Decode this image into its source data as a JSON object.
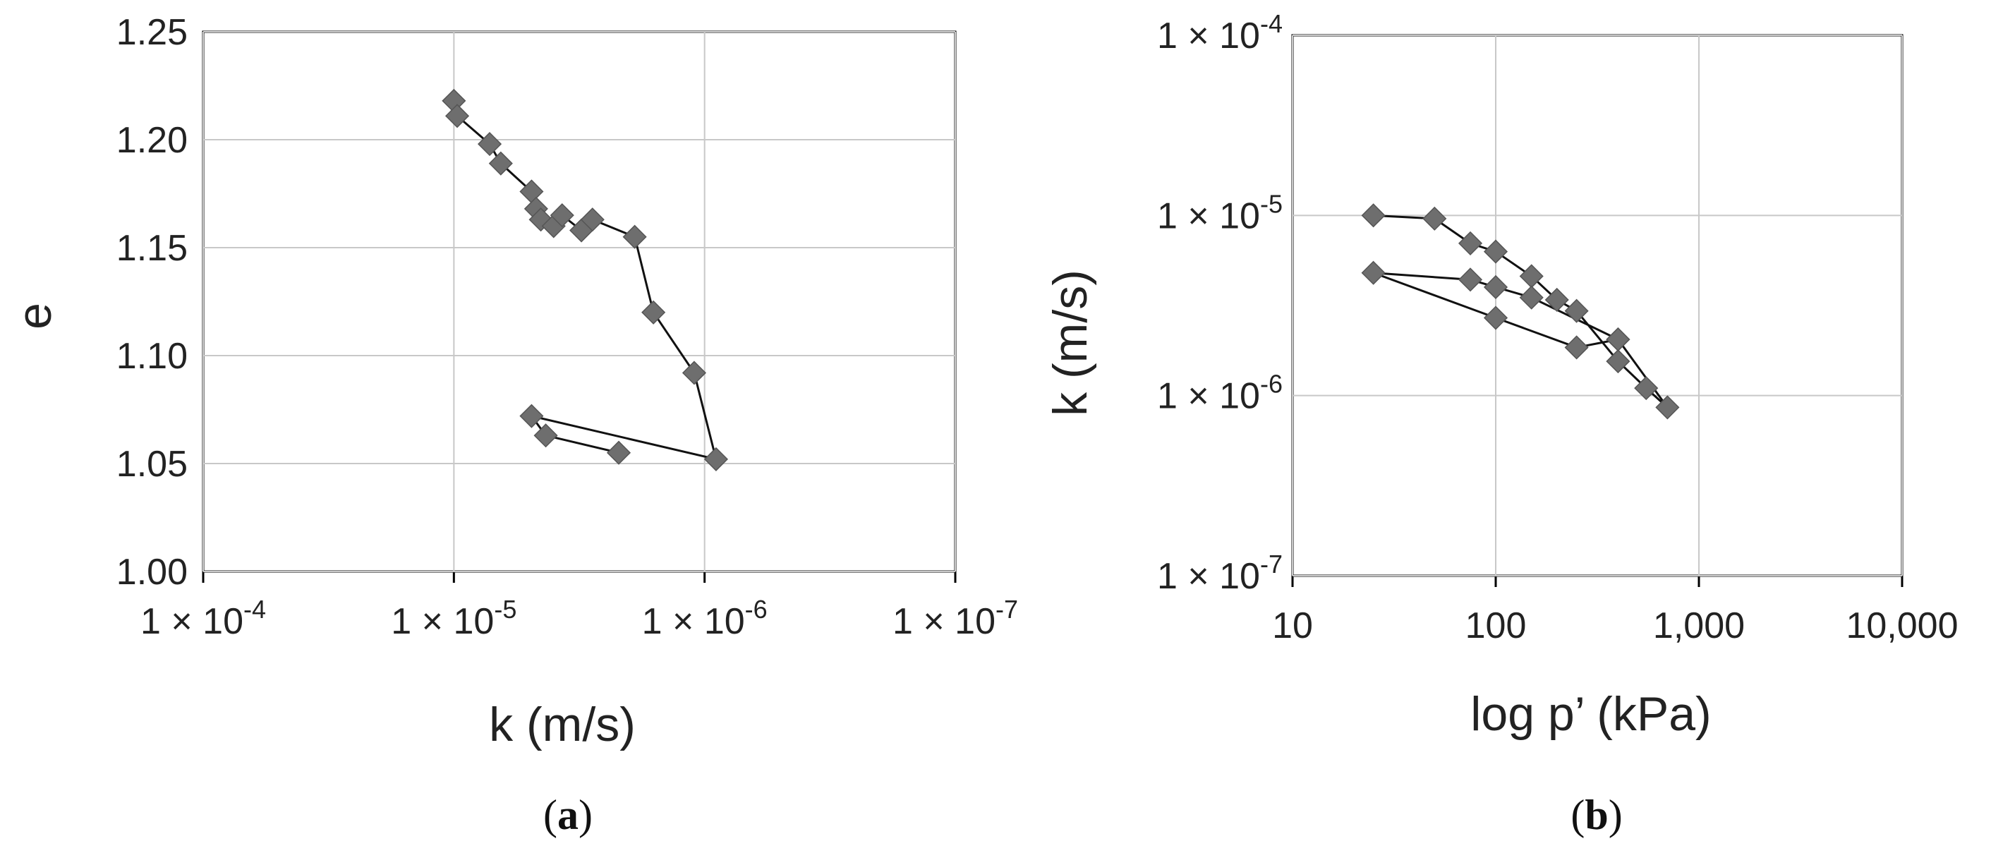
{
  "chart_data": [
    {
      "type": "line",
      "panel_label": "a",
      "xlabel": "k (m/s)",
      "ylabel": "e",
      "x_scale": "log",
      "x_reversed": true,
      "xlim": [
        1e-07,
        0.0001
      ],
      "ylim": [
        1.0,
        1.25
      ],
      "x_ticks": [
        {
          "value": 0.0001,
          "label": "1 × 10",
          "exp": "-4"
        },
        {
          "value": 1e-05,
          "label": "1 × 10",
          "exp": "-5"
        },
        {
          "value": 1e-06,
          "label": "1 × 10",
          "exp": "-6"
        },
        {
          "value": 1e-07,
          "label": "1 × 10",
          "exp": "-7"
        }
      ],
      "y_ticks": [
        {
          "value": 1.0,
          "label": "1.00"
        },
        {
          "value": 1.05,
          "label": "1.05"
        },
        {
          "value": 1.1,
          "label": "1.10"
        },
        {
          "value": 1.15,
          "label": "1.15"
        },
        {
          "value": 1.2,
          "label": "1.20"
        },
        {
          "value": 1.25,
          "label": "1.25"
        }
      ],
      "grid": true,
      "marker": "diamond",
      "series": [
        {
          "x": [
            1e-05,
            9.7e-06,
            7.2e-06,
            6.5e-06,
            4.9e-06,
            4.7e-06,
            4.5e-06,
            4e-06,
            3.7e-06,
            3.1e-06,
            2.8e-06,
            1.9e-06,
            1.6e-06,
            1.1e-06,
            9e-07,
            4.9e-06,
            4.3e-06,
            2.2e-06
          ],
          "y": [
            1.218,
            1.211,
            1.198,
            1.189,
            1.176,
            1.168,
            1.163,
            1.16,
            1.165,
            1.158,
            1.163,
            1.155,
            1.12,
            1.092,
            1.052,
            1.072,
            1.063,
            1.055
          ]
        }
      ]
    },
    {
      "type": "line",
      "panel_label": "b",
      "xlabel": "log p’ (kPa)",
      "ylabel": "k (m/s)",
      "x_scale": "log",
      "y_scale": "log",
      "xlim": [
        10,
        10000
      ],
      "ylim": [
        1e-07,
        0.0001
      ],
      "x_ticks": [
        {
          "value": 10,
          "label": "10"
        },
        {
          "value": 100,
          "label": "100"
        },
        {
          "value": 1000,
          "label": "1,000"
        },
        {
          "value": 10000,
          "label": "10,000"
        }
      ],
      "y_ticks": [
        {
          "value": 0.0001,
          "label": "1 × 10",
          "exp": "-4"
        },
        {
          "value": 1e-05,
          "label": "1 × 10",
          "exp": "-5"
        },
        {
          "value": 1e-06,
          "label": "1 × 10",
          "exp": "-6"
        },
        {
          "value": 1e-07,
          "label": "1 × 10",
          "exp": "-7"
        }
      ],
      "grid": true,
      "marker": "diamond",
      "series": [
        {
          "x": [
            25,
            50,
            75,
            100,
            150,
            200,
            250,
            400,
            550,
            700,
            400,
            250,
            100,
            25,
            75,
            100,
            150,
            400
          ],
          "y": [
            1e-05,
            9.6e-06,
            7e-06,
            6.3e-06,
            4.6e-06,
            3.4e-06,
            2.95e-06,
            1.55e-06,
            1.1e-06,
            8.6e-07,
            2.05e-06,
            1.85e-06,
            2.7e-06,
            4.8e-06,
            4.4e-06,
            4e-06,
            3.5e-06,
            2.05e-06
          ]
        }
      ]
    }
  ]
}
